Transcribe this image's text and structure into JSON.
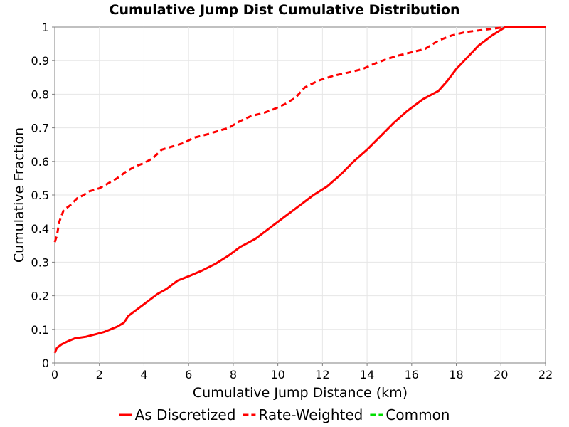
{
  "chart_data": {
    "type": "line",
    "title": "Cumulative Jump Dist Cumulative Distribution",
    "xlabel": "Cumulative Jump Distance (km)",
    "ylabel": "Cumulative Fraction",
    "xlim": [
      0,
      22
    ],
    "ylim": [
      0,
      1
    ],
    "xticks": [
      "0",
      "2",
      "4",
      "6",
      "8",
      "10",
      "12",
      "14",
      "16",
      "18",
      "20",
      "22"
    ],
    "yticks": [
      "0",
      "0.1",
      "0.2",
      "0.3",
      "0.4",
      "0.5",
      "0.6",
      "0.7",
      "0.8",
      "0.9",
      "1"
    ],
    "grid": true,
    "legend_position": "bottom",
    "series": [
      {
        "name": "As Discretized",
        "color": "#ff0000",
        "style": "solid",
        "x": [
          0,
          0.1,
          0.3,
          0.6,
          0.9,
          1.4,
          1.8,
          2.2,
          2.5,
          2.8,
          3.1,
          3.3,
          3.6,
          3.9,
          4.2,
          4.6,
          5.0,
          5.5,
          6.0,
          6.6,
          7.2,
          7.8,
          8.3,
          9.0,
          9.6,
          10.3,
          11.0,
          11.6,
          12.2,
          12.8,
          13.4,
          14.0,
          14.6,
          15.2,
          15.8,
          16.5,
          17.2,
          17.6,
          18.0,
          18.5,
          19.0,
          19.6,
          20.2,
          20.6,
          21.0,
          21.5,
          22.0
        ],
        "y": [
          0.03,
          0.045,
          0.055,
          0.065,
          0.073,
          0.078,
          0.085,
          0.092,
          0.1,
          0.108,
          0.12,
          0.14,
          0.155,
          0.17,
          0.185,
          0.205,
          0.22,
          0.245,
          0.258,
          0.275,
          0.295,
          0.32,
          0.345,
          0.37,
          0.4,
          0.435,
          0.47,
          0.5,
          0.525,
          0.56,
          0.6,
          0.635,
          0.675,
          0.715,
          0.75,
          0.785,
          0.81,
          0.84,
          0.875,
          0.91,
          0.945,
          0.975,
          1.0,
          1.0,
          1.0,
          1.0,
          1.0
        ]
      },
      {
        "name": "Rate-Weighted",
        "color": "#ff0000",
        "style": "dashed",
        "x": [
          0,
          0.1,
          0.2,
          0.4,
          0.7,
          1.0,
          1.3,
          1.5,
          2.0,
          2.4,
          2.8,
          3.2,
          3.6,
          4.0,
          4.4,
          4.8,
          5.3,
          5.8,
          6.2,
          6.8,
          7.3,
          7.8,
          8.3,
          8.8,
          9.4,
          9.8,
          10.3,
          10.8,
          11.2,
          11.8,
          12.5,
          13.2,
          13.8,
          14.3,
          14.9,
          15.4,
          16.0,
          16.6,
          17.2,
          17.8,
          18.4,
          19.0,
          19.6,
          20.2,
          20.8,
          21.3,
          22.0
        ],
        "y": [
          0.36,
          0.38,
          0.42,
          0.455,
          0.47,
          0.49,
          0.5,
          0.51,
          0.52,
          0.535,
          0.55,
          0.57,
          0.585,
          0.595,
          0.61,
          0.635,
          0.645,
          0.655,
          0.67,
          0.68,
          0.69,
          0.7,
          0.72,
          0.735,
          0.745,
          0.755,
          0.77,
          0.79,
          0.82,
          0.84,
          0.855,
          0.865,
          0.875,
          0.89,
          0.905,
          0.915,
          0.925,
          0.935,
          0.96,
          0.975,
          0.985,
          0.99,
          0.995,
          1.0,
          1.0,
          1.0,
          1.0
        ]
      },
      {
        "name": "Common",
        "color": "#00dd00",
        "style": "dashed",
        "x": [],
        "y": []
      }
    ]
  }
}
